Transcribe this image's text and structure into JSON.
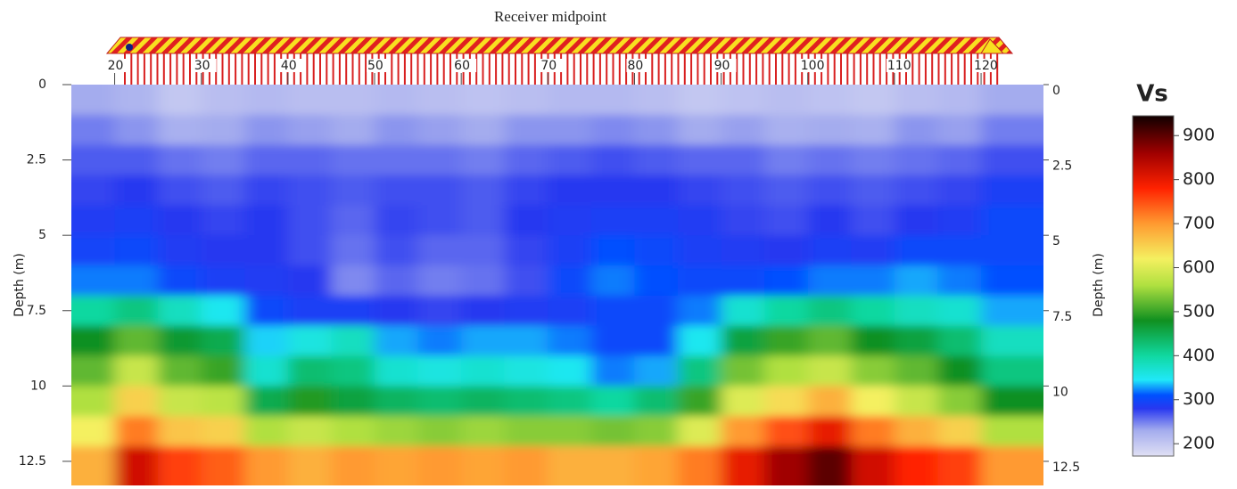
{
  "chart_data": {
    "type": "heatmap",
    "title": "Receiver midpoint",
    "ylabel": "Depth (m)",
    "colorbar_title": "Vs",
    "x": [
      17.5,
      22.5,
      27.5,
      32.5,
      37.5,
      42.5,
      47.5,
      52.5,
      57.5,
      62.5,
      67.5,
      72.5,
      77.5,
      82.5,
      87.5,
      92.5,
      97.5,
      102.5,
      107.5,
      112.5,
      117.5,
      122.5
    ],
    "y": [
      0.5,
      1.5,
      2.5,
      3.5,
      4.5,
      5.5,
      6.5,
      7.5,
      8.5,
      9.5,
      10.5,
      11.5,
      12.5
    ],
    "z": [
      [
        230,
        220,
        200,
        210,
        215,
        210,
        210,
        215,
        210,
        205,
        210,
        215,
        215,
        210,
        200,
        205,
        210,
        205,
        200,
        210,
        215,
        230
      ],
      [
        250,
        240,
        225,
        230,
        240,
        235,
        230,
        240,
        235,
        230,
        240,
        240,
        245,
        240,
        230,
        235,
        225,
        230,
        225,
        240,
        235,
        250
      ],
      [
        265,
        265,
        255,
        250,
        260,
        260,
        255,
        255,
        255,
        250,
        260,
        265,
        270,
        265,
        260,
        260,
        250,
        255,
        250,
        255,
        260,
        270
      ],
      [
        275,
        280,
        270,
        265,
        275,
        270,
        265,
        270,
        270,
        265,
        275,
        280,
        280,
        280,
        275,
        270,
        265,
        270,
        265,
        270,
        275,
        290
      ],
      [
        285,
        290,
        280,
        275,
        280,
        270,
        260,
        275,
        270,
        265,
        280,
        285,
        290,
        290,
        285,
        275,
        270,
        280,
        270,
        280,
        285,
        300
      ],
      [
        295,
        300,
        285,
        280,
        280,
        270,
        255,
        270,
        260,
        260,
        275,
        290,
        310,
        300,
        290,
        285,
        280,
        290,
        285,
        300,
        300,
        300
      ],
      [
        320,
        320,
        300,
        290,
        285,
        280,
        245,
        260,
        250,
        255,
        270,
        300,
        320,
        310,
        300,
        300,
        310,
        320,
        320,
        330,
        320,
        310
      ],
      [
        400,
        420,
        380,
        350,
        300,
        290,
        290,
        280,
        275,
        280,
        285,
        290,
        300,
        300,
        320,
        370,
        400,
        420,
        400,
        380,
        370,
        330
      ],
      [
        480,
        520,
        470,
        450,
        340,
        360,
        380,
        330,
        320,
        330,
        330,
        320,
        300,
        300,
        350,
        460,
        500,
        520,
        480,
        460,
        430,
        380
      ],
      [
        520,
        580,
        520,
        500,
        370,
        430,
        420,
        370,
        360,
        370,
        360,
        350,
        320,
        330,
        420,
        530,
        560,
        580,
        540,
        520,
        480,
        420
      ],
      [
        560,
        650,
        580,
        570,
        450,
        490,
        460,
        440,
        430,
        440,
        430,
        420,
        400,
        430,
        500,
        600,
        640,
        680,
        620,
        580,
        540,
        480
      ],
      [
        620,
        720,
        660,
        650,
        560,
        580,
        560,
        550,
        540,
        550,
        540,
        540,
        530,
        540,
        600,
        700,
        750,
        800,
        720,
        680,
        650,
        560
      ],
      [
        680,
        820,
        760,
        740,
        700,
        680,
        700,
        690,
        700,
        690,
        700,
        680,
        680,
        690,
        720,
        800,
        860,
        900,
        820,
        780,
        760,
        700
      ]
    ],
    "xlim": [
      15,
      127.2
    ],
    "ylim": [
      0,
      13.3
    ],
    "zlim": [
      172,
      945
    ],
    "xticks": [
      20,
      30,
      40,
      50,
      60,
      70,
      80,
      90,
      100,
      110,
      120
    ],
    "yticks": [
      0,
      2.5,
      5,
      7.5,
      10,
      12.5
    ],
    "zticks": [
      200,
      300,
      400,
      500,
      600,
      700,
      800,
      900
    ],
    "colorscale": [
      [
        172,
        "#e0e0f4"
      ],
      [
        230,
        "#a4acee"
      ],
      [
        280,
        "#2838f0"
      ],
      [
        310,
        "#0050ff"
      ],
      [
        345,
        "#20e8f8"
      ],
      [
        400,
        "#10d8a0"
      ],
      [
        480,
        "#109020"
      ],
      [
        560,
        "#b0e040"
      ],
      [
        620,
        "#f4f060"
      ],
      [
        700,
        "#ff9a30"
      ],
      [
        780,
        "#ff2200"
      ],
      [
        860,
        "#a00000"
      ],
      [
        945,
        "#100000"
      ]
    ]
  }
}
